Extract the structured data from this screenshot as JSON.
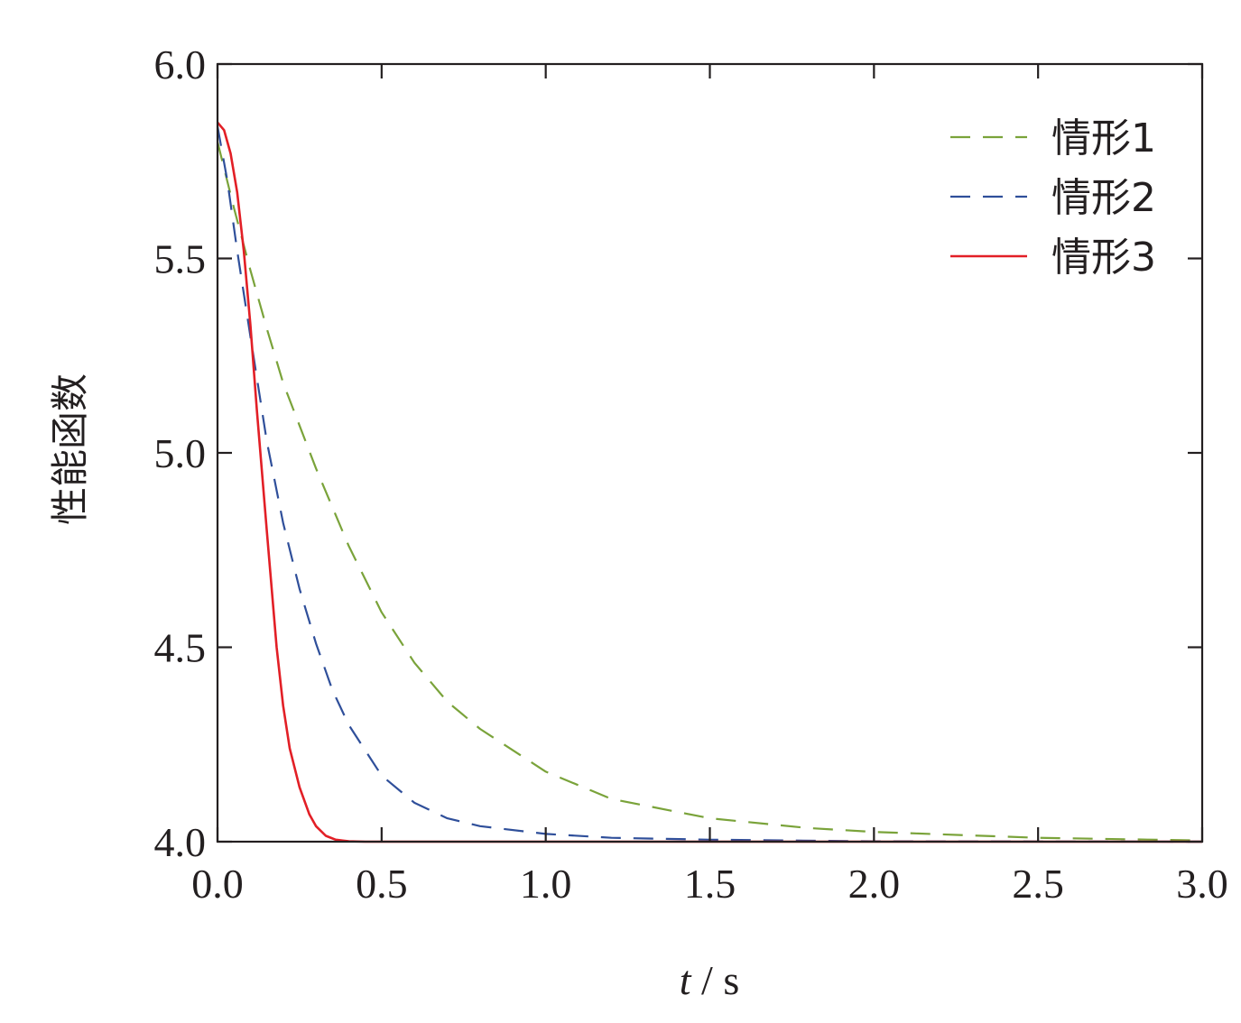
{
  "chart_data": {
    "type": "line",
    "xlabel_var": "t",
    "xlabel_sep": " / ",
    "xlabel_unit": "s",
    "ylabel": "性能函数",
    "xlim": [
      0,
      3
    ],
    "ylim": [
      4,
      6
    ],
    "xticks": [
      "0.0",
      "0.5",
      "1.0",
      "1.5",
      "2.0",
      "2.5",
      "3.0"
    ],
    "yticks": [
      "4.0",
      "4.5",
      "5.0",
      "5.5",
      "6.0"
    ],
    "grid": false,
    "legend_position": "top-right",
    "series": [
      {
        "name": "情形1",
        "color": "#7aa33a",
        "style": "dashed",
        "x": [
          0,
          0.05,
          0.1,
          0.15,
          0.2,
          0.3,
          0.4,
          0.5,
          0.6,
          0.7,
          0.8,
          1.0,
          1.2,
          1.5,
          1.8,
          2.0,
          2.5,
          3.0
        ],
        "y": [
          5.8,
          5.63,
          5.47,
          5.32,
          5.18,
          4.96,
          4.76,
          4.59,
          4.46,
          4.36,
          4.29,
          4.18,
          4.11,
          4.06,
          4.035,
          4.025,
          4.01,
          4.003
        ]
      },
      {
        "name": "情形2",
        "color": "#2f4f9a",
        "style": "dashed",
        "x": [
          0,
          0.03,
          0.06,
          0.1,
          0.15,
          0.2,
          0.25,
          0.3,
          0.35,
          0.4,
          0.5,
          0.6,
          0.7,
          0.8,
          1.0,
          1.2,
          1.5,
          2.0,
          3.0
        ],
        "y": [
          5.84,
          5.7,
          5.52,
          5.3,
          5.03,
          4.82,
          4.65,
          4.51,
          4.39,
          4.3,
          4.17,
          4.1,
          4.06,
          4.04,
          4.02,
          4.01,
          4.005,
          4.001,
          4.0
        ]
      },
      {
        "name": "情形3",
        "color": "#e21f26",
        "style": "solid",
        "x": [
          0,
          0.02,
          0.04,
          0.06,
          0.08,
          0.1,
          0.12,
          0.15,
          0.18,
          0.2,
          0.22,
          0.25,
          0.28,
          0.3,
          0.33,
          0.36,
          0.4,
          0.45,
          0.5,
          1.0,
          2.0,
          3.0
        ],
        "y": [
          5.85,
          5.83,
          5.77,
          5.67,
          5.52,
          5.33,
          5.11,
          4.8,
          4.5,
          4.35,
          4.24,
          4.14,
          4.07,
          4.04,
          4.015,
          4.005,
          4.001,
          4.0,
          4.0,
          4.0,
          4.0,
          4.0
        ]
      }
    ]
  }
}
